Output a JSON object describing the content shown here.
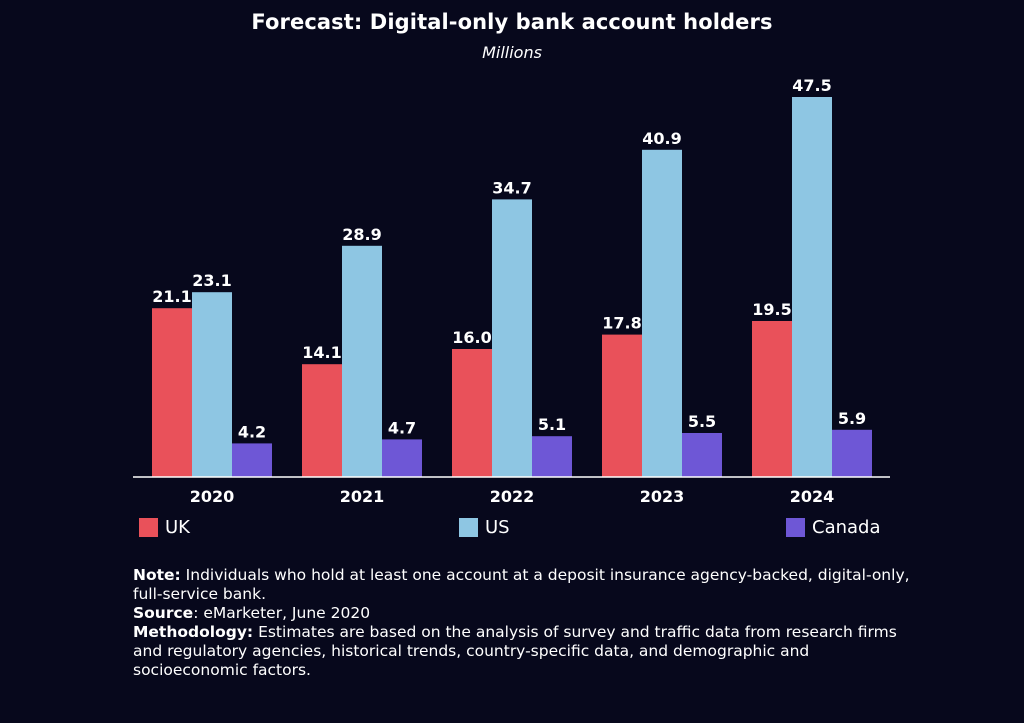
{
  "title": "Forecast: Digital-only bank account holders",
  "subtitle": "Millions",
  "chart_data": {
    "type": "bar",
    "categories": [
      "2020",
      "2021",
      "2022",
      "2023",
      "2024"
    ],
    "series": [
      {
        "name": "UK",
        "color": "#e9515a",
        "values": [
          21.1,
          14.1,
          16.0,
          17.8,
          19.5
        ],
        "labels": [
          "21.1",
          "14.1",
          "16.0",
          "17.8",
          "19.5"
        ]
      },
      {
        "name": "US",
        "color": "#8ec6e3",
        "values": [
          23.1,
          28.9,
          34.7,
          40.9,
          47.5
        ],
        "labels": [
          "23.1",
          "28.9",
          "34.7",
          "40.9",
          "47.5"
        ]
      },
      {
        "name": "Canada",
        "color": "#6e57d6",
        "values": [
          4.2,
          4.7,
          5.1,
          5.5,
          5.9
        ],
        "labels": [
          "4.2",
          "4.7",
          "5.1",
          "5.5",
          "5.9"
        ]
      }
    ],
    "ylim": [
      0,
      50
    ],
    "grid": false,
    "legend_position": "bottom"
  },
  "notes": {
    "note_label": "Note:",
    "note_text": " Individuals who hold at least one account at a deposit insurance agency-backed, digital-only, full-service bank.",
    "source_label": "Source",
    "source_text": ": eMarketer, June 2020",
    "methodology_label": "Methodology:",
    "methodology_text": " Estimates are based on the analysis of survey and traffic data from research firms and regulatory agencies, historical trends, country-specific data, and demographic and socioeconomic factors."
  }
}
